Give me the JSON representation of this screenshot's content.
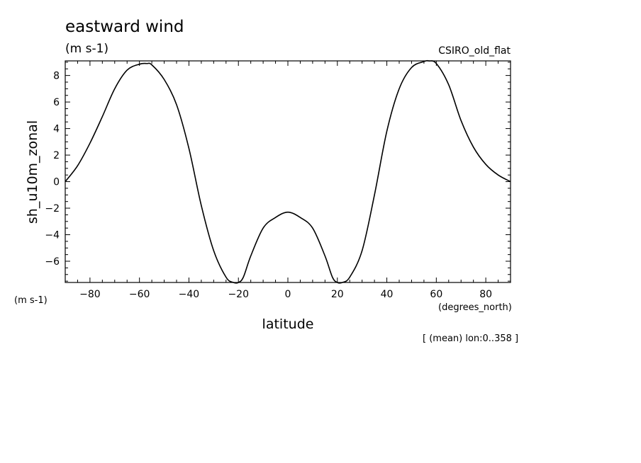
{
  "chart_data": {
    "type": "line",
    "title": "eastward wind",
    "units": "(m s-1)",
    "model": "CSIRO_old_flat",
    "xlabel": "latitude",
    "x_units": "(degrees_north)",
    "ylabel": "sh_u10m_zonal",
    "y_units": "(m s-1)",
    "footnote": "[ (mean) lon:0..358 ]",
    "xlim": [
      -90,
      90
    ],
    "ylim": [
      -7.6,
      9.1
    ],
    "x_ticks": [
      -80,
      -60,
      -40,
      -20,
      0,
      20,
      40,
      60,
      80
    ],
    "y_ticks": [
      -6,
      -4,
      -2,
      0,
      2,
      4,
      6,
      8
    ],
    "grid": false,
    "line_color": "#000000",
    "x": [
      -90,
      -85,
      -80,
      -75,
      -70,
      -65,
      -60,
      -57,
      -55,
      -50,
      -45,
      -40,
      -35,
      -30,
      -25,
      -22,
      -20,
      -18,
      -15,
      -10,
      -5,
      0,
      5,
      10,
      15,
      18,
      20,
      22,
      25,
      30,
      35,
      40,
      45,
      50,
      55,
      57,
      60,
      65,
      70,
      75,
      80,
      85,
      90
    ],
    "y": [
      0.0,
      1.2,
      2.9,
      4.9,
      7.0,
      8.4,
      8.85,
      8.9,
      8.8,
      7.7,
      5.8,
      2.5,
      -1.8,
      -5.2,
      -7.2,
      -7.6,
      -7.6,
      -7.2,
      -5.6,
      -3.5,
      -2.7,
      -2.3,
      -2.7,
      -3.5,
      -5.6,
      -7.2,
      -7.6,
      -7.6,
      -7.2,
      -5.2,
      -1.0,
      3.8,
      7.0,
      8.6,
      9.05,
      9.1,
      8.9,
      7.3,
      4.6,
      2.6,
      1.3,
      0.5,
      0.0
    ]
  }
}
